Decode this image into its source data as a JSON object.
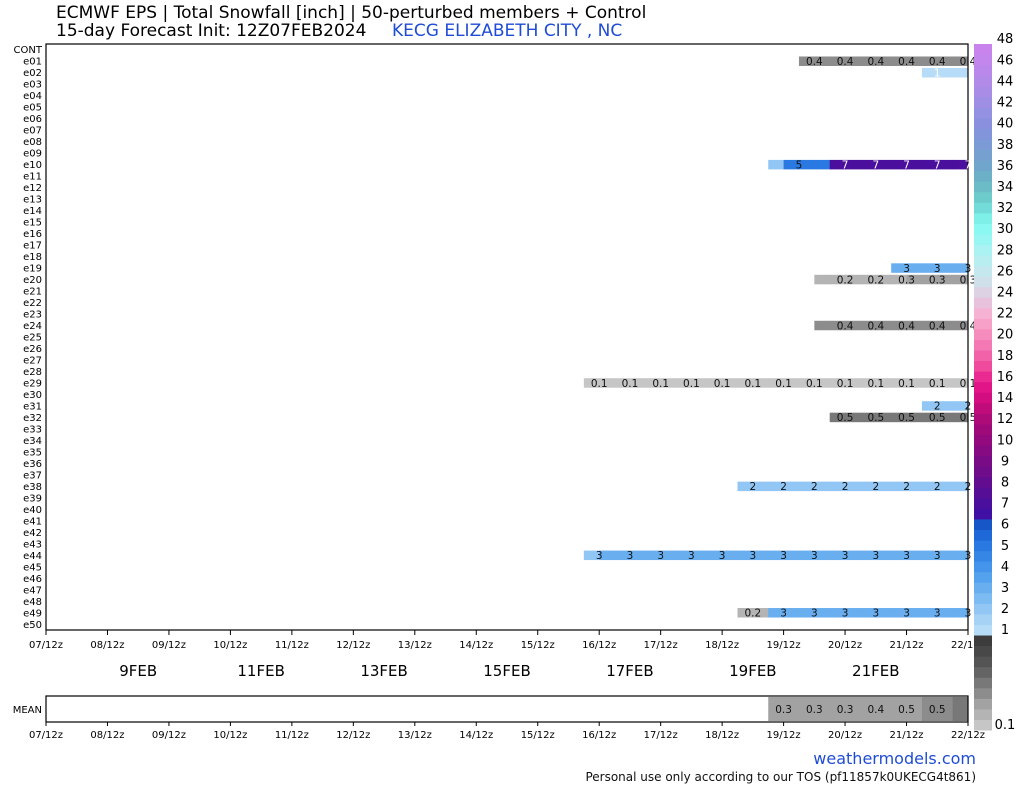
{
  "title_line1": "ECMWF EPS | Total Snowfall [inch] | 50-perturbed members + Control",
  "title_line2": "15-day Forecast Init: 12Z07FEB2024",
  "station": "KECG ELIZABETH CITY , NC",
  "brand": "weathermodels.com",
  "tos": "Personal use only according to our TOS (pf11857k0UKECG4t861)",
  "chart_data": {
    "type": "heatmap",
    "title": "ECMWF EPS | Total Snowfall [inch] | 50-perturbed members + Control",
    "members": [
      "CONT",
      "e01",
      "e02",
      "e03",
      "e04",
      "e05",
      "e06",
      "e07",
      "e08",
      "e09",
      "e10",
      "e11",
      "e12",
      "e13",
      "e14",
      "e15",
      "e16",
      "e17",
      "e18",
      "e19",
      "e20",
      "e21",
      "e22",
      "e23",
      "e24",
      "e25",
      "e26",
      "e27",
      "e28",
      "e29",
      "e30",
      "e31",
      "e32",
      "e33",
      "e34",
      "e35",
      "e36",
      "e37",
      "e38",
      "e39",
      "e40",
      "e41",
      "e42",
      "e43",
      "e44",
      "e45",
      "e46",
      "e47",
      "e48",
      "e49",
      "e50"
    ],
    "x_ticks": [
      "07/12z",
      "08/12z",
      "09/12z",
      "10/12z",
      "11/12z",
      "12/12z",
      "13/12z",
      "14/12z",
      "15/12z",
      "16/12z",
      "17/12z",
      "18/12z",
      "19/12z",
      "20/12z",
      "21/12z",
      "22/12z"
    ],
    "date_labels": [
      "9FEB",
      "11FEB",
      "13FEB",
      "15FEB",
      "17FEB",
      "19FEB",
      "21FEB"
    ],
    "mean_label": "MEAN",
    "series": [
      {
        "member": "e01",
        "start": "19/18z",
        "values": [
          0.4,
          0.4,
          0.4,
          0.4,
          0.4,
          0.4,
          0.4,
          0.4,
          0.4,
          0.4,
          0.4,
          0.4
        ],
        "labels": [
          {
            "at": "20/00z",
            "text": "0.4"
          },
          {
            "at": "20/12z",
            "text": "0.4"
          },
          {
            "at": "21/00z",
            "text": "0.4"
          },
          {
            "at": "21/12z",
            "text": "0.4"
          },
          {
            "at": "22/00z",
            "text": "0.4"
          },
          {
            "at": "22/12z",
            "text": "0.4"
          }
        ]
      },
      {
        "member": "e02",
        "start": "21/18z",
        "values": [
          1,
          1,
          1,
          1,
          1,
          1
        ],
        "labels": [
          {
            "at": "22/00z",
            "text": "1"
          }
        ]
      },
      {
        "member": "e10",
        "start": "19/06z",
        "values": [
          2,
          5,
          5,
          5,
          7,
          7,
          7,
          7,
          7,
          7,
          7,
          7,
          7,
          7,
          7,
          7,
          7
        ],
        "labels": [
          {
            "at": "19/18z",
            "text": "5"
          },
          {
            "at": "20/12z",
            "text": "7"
          },
          {
            "at": "21/00z",
            "text": "7"
          },
          {
            "at": "21/12z",
            "text": "7"
          },
          {
            "at": "22/00z",
            "text": "7"
          },
          {
            "at": "22/12z",
            "text": "7"
          }
        ]
      },
      {
        "member": "e19",
        "start": "21/06z",
        "values": [
          3,
          3,
          3,
          3,
          3,
          3,
          3,
          3
        ],
        "labels": [
          {
            "at": "21/12z",
            "text": "3"
          },
          {
            "at": "22/00z",
            "text": "3"
          },
          {
            "at": "22/12z",
            "text": "3"
          }
        ]
      },
      {
        "member": "e20",
        "start": "20/00z",
        "values": [
          0.2,
          0.2,
          0.2,
          0.2,
          0.2,
          0.2,
          0.3,
          0.3,
          0.3,
          0.3,
          0.3,
          0.3
        ],
        "labels": [
          {
            "at": "20/12z",
            "text": "0.2"
          },
          {
            "at": "21/00z",
            "text": "0.2"
          },
          {
            "at": "21/12z",
            "text": "0.3"
          },
          {
            "at": "22/00z",
            "text": "0.3"
          },
          {
            "at": "22/12z",
            "text": "0.3"
          }
        ]
      },
      {
        "member": "e24",
        "start": "20/00z",
        "values": [
          0.4,
          0.4,
          0.4,
          0.4,
          0.4,
          0.4,
          0.4,
          0.4,
          0.4,
          0.4,
          0.4,
          0.4
        ],
        "labels": [
          {
            "at": "20/12z",
            "text": "0.4"
          },
          {
            "at": "21/00z",
            "text": "0.4"
          },
          {
            "at": "21/12z",
            "text": "0.4"
          },
          {
            "at": "22/00z",
            "text": "0.4"
          },
          {
            "at": "22/12z",
            "text": "0.4"
          }
        ]
      },
      {
        "member": "e29",
        "start": "16/06z",
        "values": [
          0.1,
          0.1,
          0.1,
          0.1,
          0.1,
          0.1,
          0.1,
          0.1,
          0.1,
          0.1,
          0.1,
          0.1,
          0.1,
          0.1,
          0.1,
          0.1,
          0.1,
          0.1,
          0.1,
          0.1,
          0.1,
          0.1,
          0.1,
          0.1,
          0.1,
          0.1,
          0.1,
          0.1,
          0.1,
          0.1,
          0.1,
          0.1,
          0.1,
          0.1,
          0.1,
          0.1
        ],
        "labels": [
          {
            "at": "16/12z",
            "text": "0.1"
          },
          {
            "at": "17/00z",
            "text": "0.1"
          },
          {
            "at": "17/12z",
            "text": "0.1"
          },
          {
            "at": "18/00z",
            "text": "0.1"
          },
          {
            "at": "18/12z",
            "text": "0.1"
          },
          {
            "at": "19/00z",
            "text": "0.1"
          },
          {
            "at": "19/12z",
            "text": "0.1"
          },
          {
            "at": "20/00z",
            "text": "0.1"
          },
          {
            "at": "20/12z",
            "text": "0.1"
          },
          {
            "at": "21/00z",
            "text": "0.1"
          },
          {
            "at": "21/12z",
            "text": "0.1"
          },
          {
            "at": "22/00z",
            "text": "0.1"
          },
          {
            "at": "22/12z",
            "text": "0.1"
          }
        ]
      },
      {
        "member": "e31",
        "start": "21/18z",
        "values": [
          2,
          2,
          2,
          2,
          2,
          2
        ],
        "labels": [
          {
            "at": "22/00z",
            "text": "2"
          },
          {
            "at": "22/12z",
            "text": "2"
          }
        ]
      },
      {
        "member": "e32",
        "start": "20/06z",
        "values": [
          0.5,
          0.5,
          0.5,
          0.5,
          0.5,
          0.5,
          0.5,
          0.5,
          0.5,
          0.5
        ],
        "labels": [
          {
            "at": "20/12z",
            "text": "0.5"
          },
          {
            "at": "21/00z",
            "text": "0.5"
          },
          {
            "at": "21/12z",
            "text": "0.5"
          },
          {
            "at": "22/00z",
            "text": "0.5"
          },
          {
            "at": "22/12z",
            "text": "0.5"
          }
        ]
      },
      {
        "member": "e38",
        "start": "18/18z",
        "values": [
          2,
          2,
          2,
          2,
          2,
          2,
          2,
          2,
          2,
          2,
          2,
          2,
          2,
          2,
          2,
          2,
          2,
          2,
          2,
          2,
          2
        ],
        "labels": [
          {
            "at": "19/00z",
            "text": "2"
          },
          {
            "at": "19/12z",
            "text": "2"
          },
          {
            "at": "20/00z",
            "text": "2"
          },
          {
            "at": "20/12z",
            "text": "2"
          },
          {
            "at": "21/00z",
            "text": "2"
          },
          {
            "at": "21/12z",
            "text": "2"
          },
          {
            "at": "22/00z",
            "text": "2"
          },
          {
            "at": "22/12z",
            "text": "2"
          }
        ]
      },
      {
        "member": "e44",
        "start": "16/06z",
        "values": [
          2,
          3,
          3,
          3,
          3,
          3,
          3,
          3,
          3,
          3,
          3,
          3,
          3,
          3,
          3,
          3,
          3,
          3,
          3,
          3,
          3,
          3,
          3,
          3,
          3,
          3,
          3,
          3,
          3,
          3,
          3,
          3,
          3,
          3,
          3,
          3
        ],
        "labels": [
          {
            "at": "16/12z",
            "text": "3"
          },
          {
            "at": "17/00z",
            "text": "3"
          },
          {
            "at": "17/12z",
            "text": "3"
          },
          {
            "at": "18/00z",
            "text": "3"
          },
          {
            "at": "18/12z",
            "text": "3"
          },
          {
            "at": "19/00z",
            "text": "3"
          },
          {
            "at": "19/12z",
            "text": "3"
          },
          {
            "at": "20/00z",
            "text": "3"
          },
          {
            "at": "20/12z",
            "text": "3"
          },
          {
            "at": "21/00z",
            "text": "3"
          },
          {
            "at": "21/12z",
            "text": "3"
          },
          {
            "at": "22/00z",
            "text": "3"
          },
          {
            "at": "22/12z",
            "text": "3"
          }
        ]
      },
      {
        "member": "e49",
        "start": "18/18z",
        "values": [
          0.2,
          0.2,
          3,
          3,
          3,
          3,
          3,
          3,
          3,
          3,
          3,
          3,
          3,
          3,
          3,
          3,
          3,
          3,
          3,
          3,
          3
        ],
        "labels": [
          {
            "at": "19/00z",
            "text": "0.2"
          },
          {
            "at": "19/12z",
            "text": "3"
          },
          {
            "at": "20/00z",
            "text": "3"
          },
          {
            "at": "20/12z",
            "text": "3"
          },
          {
            "at": "21/00z",
            "text": "3"
          },
          {
            "at": "21/12z",
            "text": "3"
          },
          {
            "at": "22/00z",
            "text": "3"
          },
          {
            "at": "22/12z",
            "text": "3"
          }
        ]
      }
    ],
    "mean": {
      "start": "19/06z",
      "values": [
        0.3,
        0.3,
        0.3,
        0.3,
        0.3,
        0.3,
        0.3,
        0.3,
        0.3,
        0.3,
        0.4,
        0.4,
        0.5,
        0.5,
        0.5,
        0.5,
        0.5
      ],
      "labels": [
        {
          "at": "19/12z",
          "text": "0.3"
        },
        {
          "at": "20/00z",
          "text": "0.3"
        },
        {
          "at": "20/12z",
          "text": "0.3"
        },
        {
          "at": "21/00z",
          "text": "0.4"
        },
        {
          "at": "21/12z",
          "text": "0.5"
        },
        {
          "at": "22/00z",
          "text": "0.5"
        }
      ]
    },
    "colorbar": {
      "unit": "inch",
      "levels": [
        0.1,
        0.2,
        0.3,
        0.4,
        0.5,
        0.6,
        0.7,
        0.8,
        0.9,
        1,
        1.5,
        2,
        2.5,
        3,
        3.5,
        4,
        4.5,
        5,
        5.5,
        6,
        6.5,
        7,
        7.5,
        8,
        8.5,
        9,
        9.5,
        10,
        11,
        12,
        13,
        14,
        15,
        16,
        17,
        18,
        19,
        20,
        21,
        22,
        23,
        24,
        25,
        26,
        27,
        28,
        29,
        30,
        31,
        32,
        33,
        34,
        35,
        36,
        37,
        38,
        39,
        40,
        41,
        42,
        43,
        44,
        45,
        46,
        47,
        48,
        49
      ],
      "colors": [
        "#c6c6c6",
        "#b4b4b4",
        "#a2a2a2",
        "#8c8c8c",
        "#787878",
        "#646464",
        "#545454",
        "#484848",
        "#3c3c3c",
        "#b7dcf7",
        "#a6d2f6",
        "#92c7f5",
        "#7dbbf3",
        "#69aff0",
        "#54a2ed",
        "#4394ea",
        "#3686e6",
        "#2a78e2",
        "#1f68d8",
        "#1656c6",
        "#4010a4",
        "#4a0f9c",
        "#560e96",
        "#620d90",
        "#6e0c8a",
        "#7a0b86",
        "#860a82",
        "#920a7e",
        "#9e0a7a",
        "#ad0b78",
        "#c00c7a",
        "#d20e80",
        "#e11488",
        "#ea2a90",
        "#ef4a9c",
        "#f262a8",
        "#f478b4",
        "#f68cbe",
        "#f7a0c8",
        "#f6b2d2",
        "#e8c2dc",
        "#dcd2e4",
        "#cfe0ea",
        "#c4e8ee",
        "#b8eef0",
        "#aaf3f2",
        "#9af6f2",
        "#8cf8f2",
        "#7ef0e8",
        "#74dcd8",
        "#6ecbcc",
        "#6cbcc8",
        "#6cb0c8",
        "#70a6cc",
        "#76a0d0",
        "#7c9ad6",
        "#8294da",
        "#8a90de",
        "#9490e2",
        "#9e8ee4",
        "#a88ce6",
        "#b28ae8",
        "#ba88ea",
        "#c286ec",
        "#c884ec"
      ],
      "ticks": [
        "0.1",
        "1",
        "2",
        "3",
        "4",
        "5",
        "6",
        "7",
        "8",
        "9",
        "10",
        "12",
        "14",
        "16",
        "18",
        "20",
        "22",
        "24",
        "26",
        "28",
        "30",
        "32",
        "34",
        "36",
        "38",
        "40",
        "42",
        "44",
        "46",
        "48"
      ]
    }
  }
}
